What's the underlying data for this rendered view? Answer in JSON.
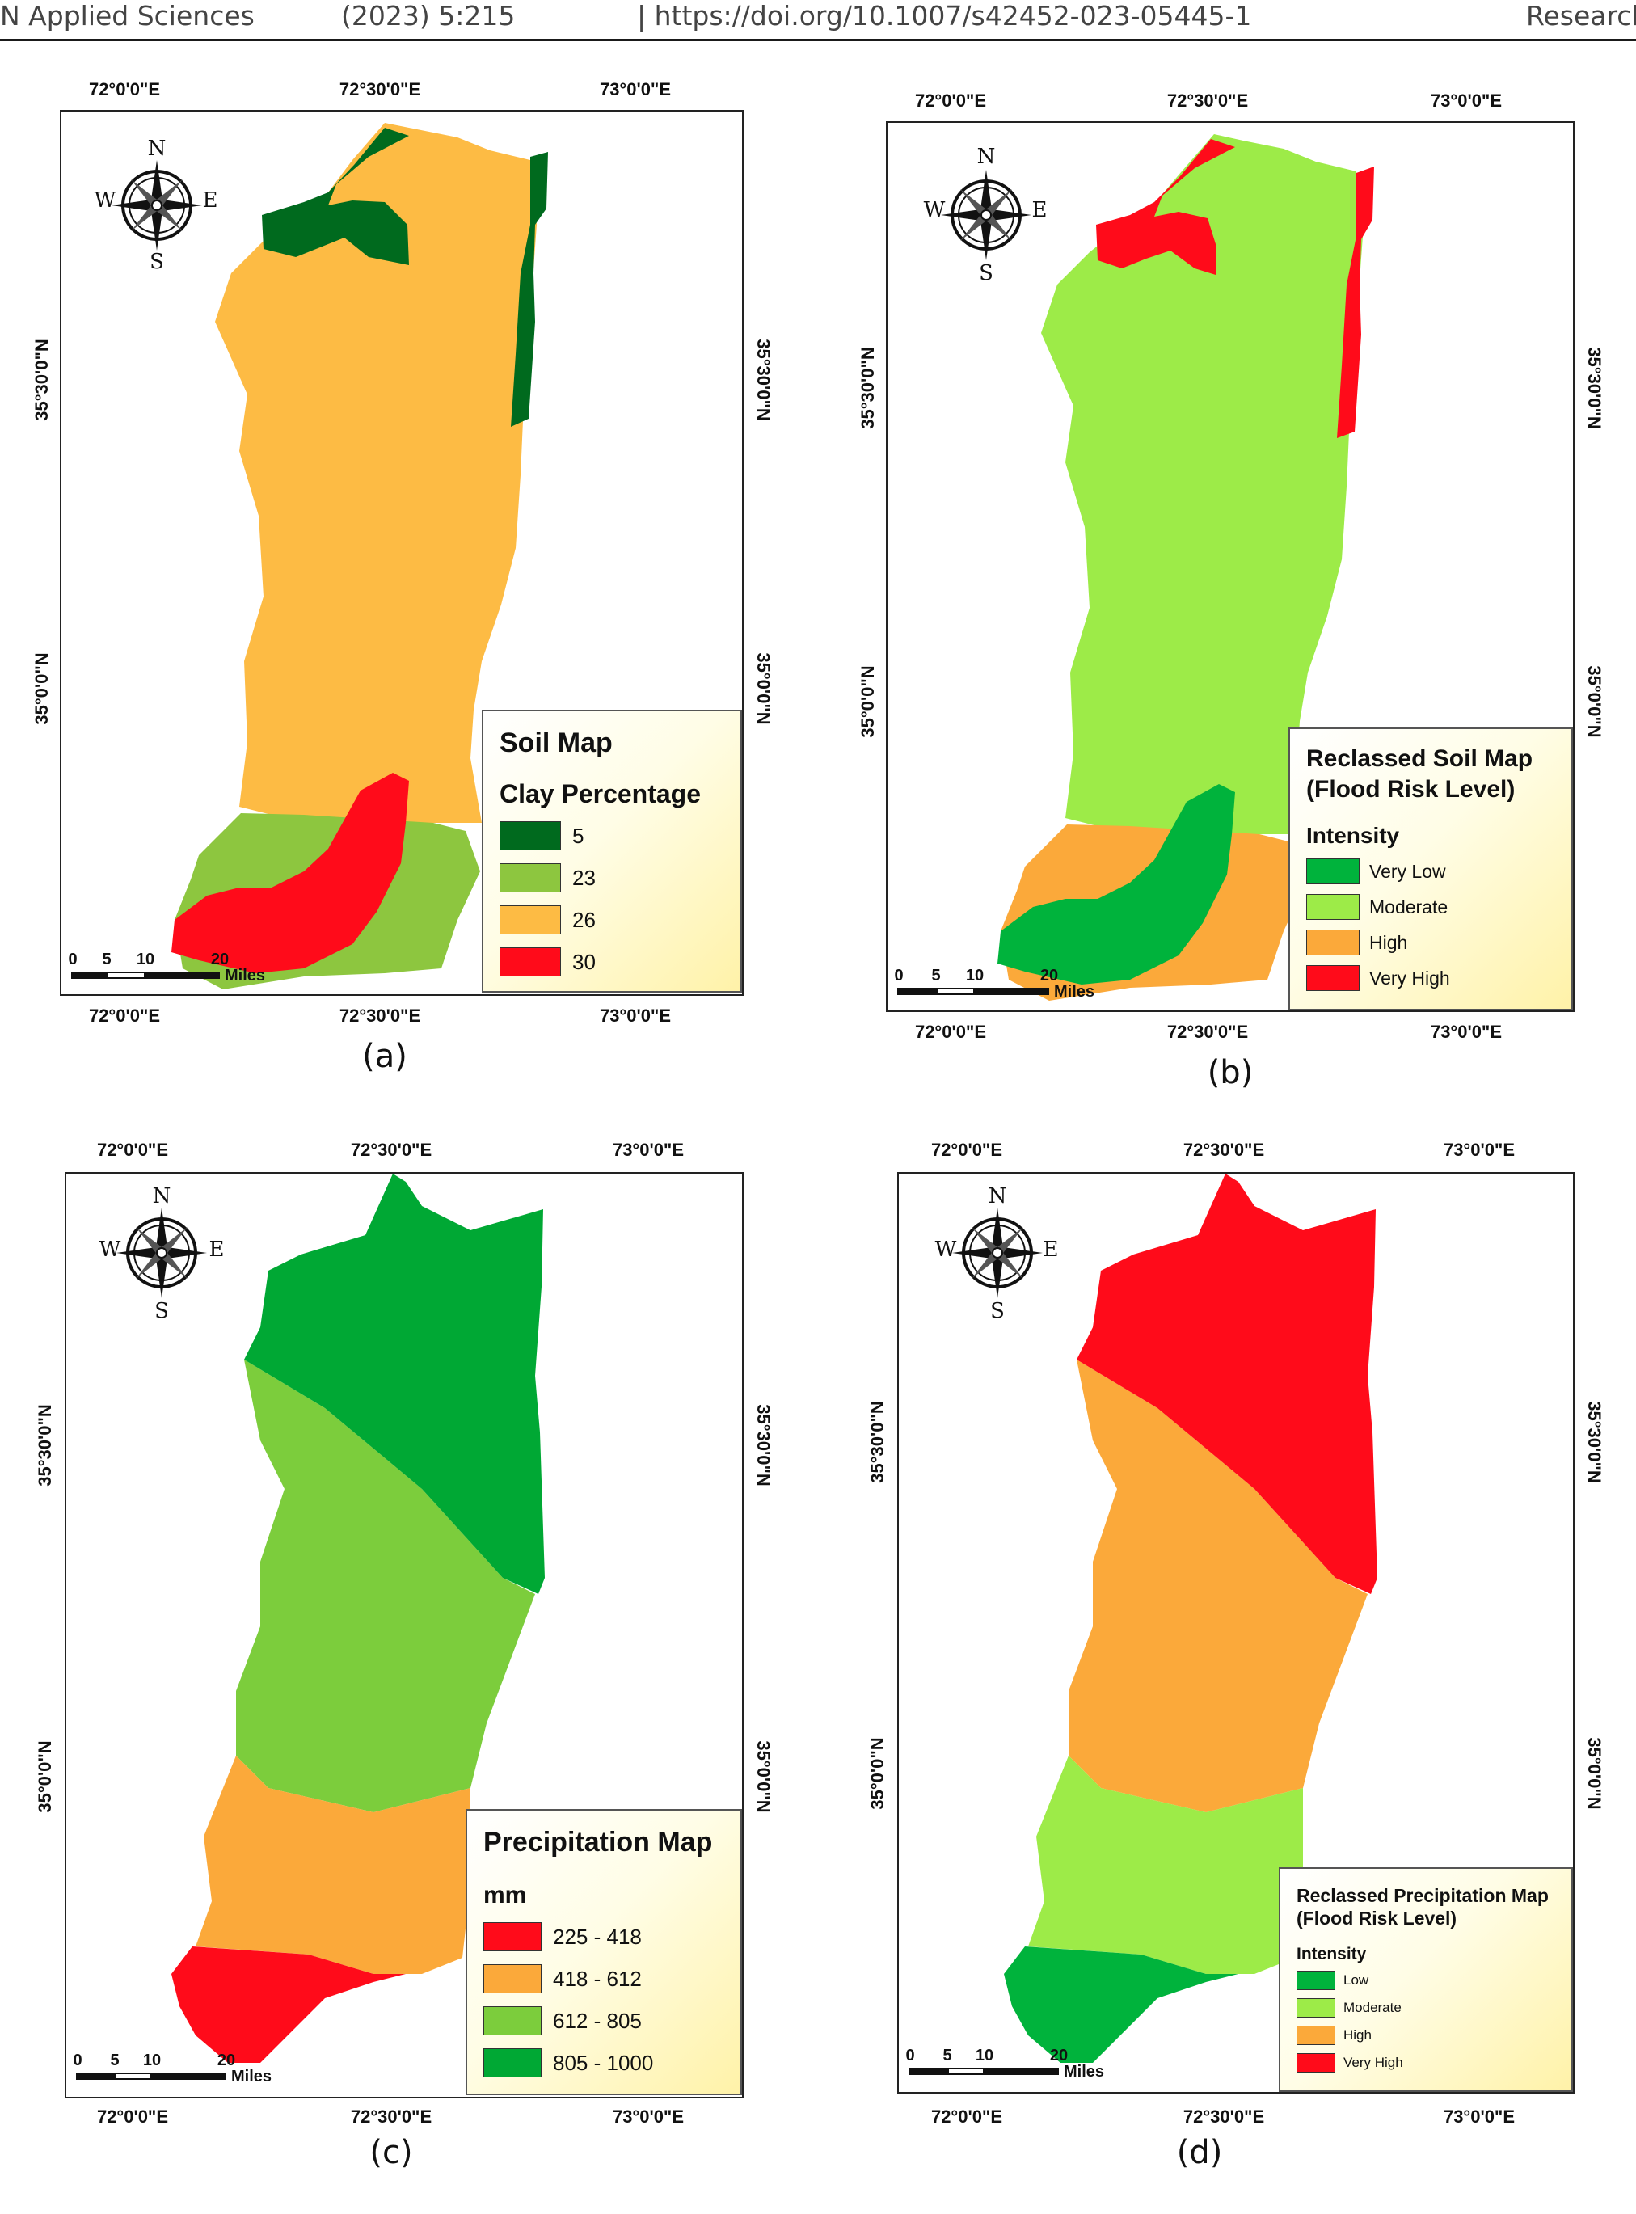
{
  "header": {
    "journal": "N Applied Sciences",
    "volume": "(2023) 5:215",
    "doi": "| https://doi.org/10.1007/s42452-023-05445-1",
    "section": "Research"
  },
  "compass": {
    "n": "N",
    "e": "E",
    "s": "S",
    "w": "W"
  },
  "scale": {
    "ticks": [
      "0",
      "5",
      "10",
      "20"
    ],
    "unit": "Miles"
  },
  "panels": [
    {
      "id": "a",
      "caption": "(a)",
      "lon_labels": [
        "72°0'0\"E",
        "72°30'0\"E",
        "73°0'0\"E"
      ],
      "lat_labels": [
        "35°30'0\"N",
        "35°0'0\"N"
      ],
      "legend": {
        "title": "Soil Map",
        "subtitle": "Clay Percentage",
        "items": [
          {
            "label": "5",
            "color": "#006a1e"
          },
          {
            "label": "23",
            "color": "#8dc63f"
          },
          {
            "label": "26",
            "color": "#fdbb44"
          },
          {
            "label": "30",
            "color": "#ff0b1a"
          }
        ]
      }
    },
    {
      "id": "b",
      "caption": "(b)",
      "lon_labels": [
        "72°0'0\"E",
        "72°30'0\"E",
        "73°0'0\"E"
      ],
      "lat_labels": [
        "35°30'0\"N",
        "35°0'0\"N"
      ],
      "legend": {
        "title": "Reclassed Soil Map",
        "title2": "(Flood Risk Level)",
        "subtitle": "Intensity",
        "items": [
          {
            "label": "Very Low",
            "color": "#00b33c"
          },
          {
            "label": "Moderate",
            "color": "#9deb48"
          },
          {
            "label": "High",
            "color": "#fba93a"
          },
          {
            "label": "Very High",
            "color": "#ff0b1a"
          }
        ]
      }
    },
    {
      "id": "c",
      "caption": "(c)",
      "lon_labels": [
        "72°0'0\"E",
        "72°30'0\"E",
        "73°0'0\"E"
      ],
      "lat_labels": [
        "35°30'0\"N",
        "35°0'0\"N"
      ],
      "legend": {
        "title": "Precipitation Map",
        "subtitle": "mm",
        "items": [
          {
            "label": "225 - 418",
            "color": "#ff0b1a"
          },
          {
            "label": "418 - 612",
            "color": "#fba93a"
          },
          {
            "label": "612 - 805",
            "color": "#7ccd3c"
          },
          {
            "label": "805 - 1000",
            "color": "#00a834"
          }
        ]
      }
    },
    {
      "id": "d",
      "caption": "(d)",
      "lon_labels": [
        "72°0'0\"E",
        "72°30'0\"E",
        "73°0'0\"E"
      ],
      "lat_labels": [
        "35°0'0\"N",
        "35°30'0\"N"
      ],
      "legend": {
        "title": "Reclassed Precipitation Map",
        "title2": "(Flood Risk Level)",
        "subtitle": "Intensity",
        "items": [
          {
            "label": "Low",
            "color": "#00b33c"
          },
          {
            "label": "Moderate",
            "color": "#9deb48"
          },
          {
            "label": "High",
            "color": "#fba93a"
          },
          {
            "label": "Very High",
            "color": "#ff0b1a"
          }
        ]
      }
    }
  ]
}
